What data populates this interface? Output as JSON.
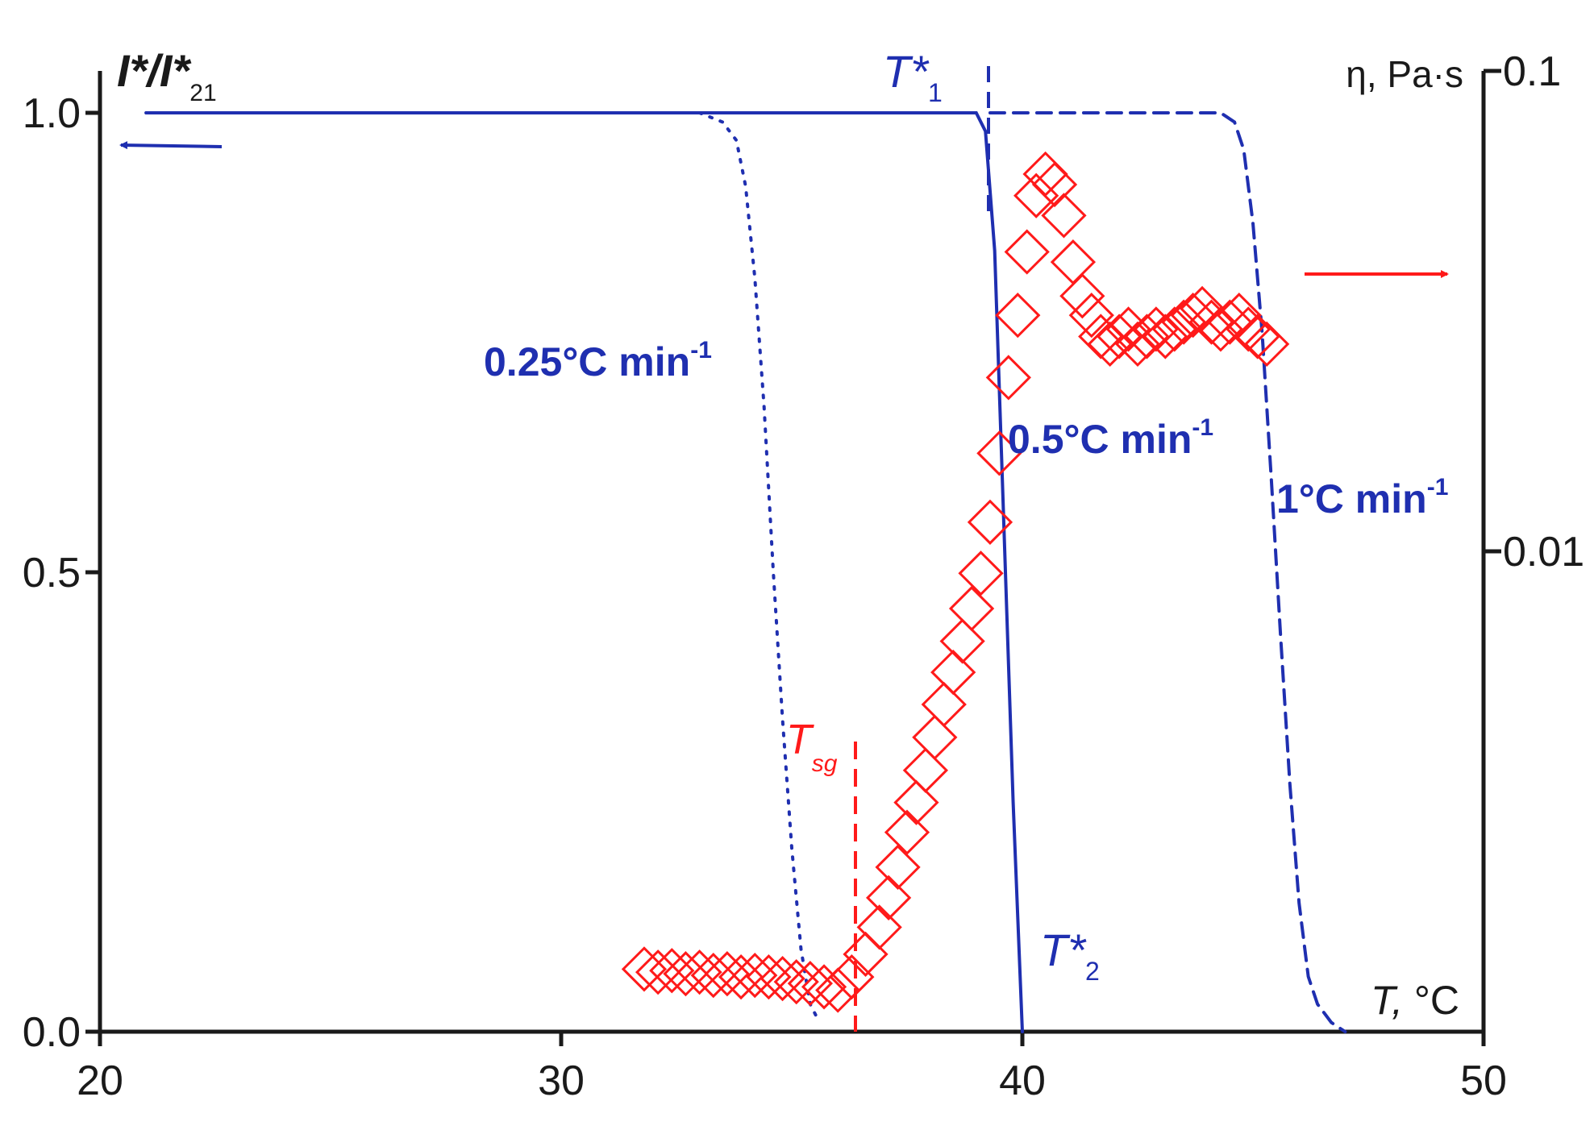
{
  "chart_data": {
    "type": "line",
    "x_axis": {
      "label_var": "T,",
      "label_unit": " °C",
      "range": [
        20,
        50
      ],
      "ticks": [
        20,
        30,
        40,
        50
      ],
      "tick_labels": [
        "20",
        "30",
        "40",
        "50"
      ]
    },
    "y_left": {
      "label_main": "I*/I*",
      "label_sub": "21",
      "range": [
        0,
        1.0
      ],
      "ticks": [
        0.0,
        0.5,
        1.0
      ],
      "tick_labels": [
        "0.0",
        "0.5",
        "1.0"
      ]
    },
    "y_right": {
      "label": "η, Pa·s",
      "scale": "log",
      "range": [
        0.001,
        0.1
      ],
      "ticks": [
        0.01,
        0.1
      ],
      "tick_labels": [
        "0.01",
        "0.1"
      ]
    },
    "series": [
      {
        "name": "0.25°C min-1",
        "axis": "left",
        "style": "dotted",
        "color": "#1f2fb0",
        "x": [
          21.0,
          33.0,
          33.5,
          33.8,
          34.0,
          34.2,
          34.4,
          34.6,
          34.8,
          35.0,
          35.2,
          35.4,
          35.6
        ],
        "y": [
          1.0,
          1.0,
          0.99,
          0.97,
          0.92,
          0.82,
          0.68,
          0.5,
          0.34,
          0.2,
          0.09,
          0.03,
          0.01
        ]
      },
      {
        "name": "0.5°C min-1",
        "axis": "left",
        "style": "solid",
        "color": "#1f2fb0",
        "x": [
          21.0,
          39.0,
          39.2,
          39.4,
          39.6,
          39.8,
          40.0
        ],
        "y": [
          1.0,
          1.0,
          0.98,
          0.85,
          0.55,
          0.25,
          0.0
        ]
      },
      {
        "name": "1°C min-1",
        "axis": "left",
        "style": "dashed",
        "color": "#1f2fb0",
        "x": [
          39.3,
          44.3,
          44.6,
          44.8,
          45.0,
          45.2,
          45.4,
          45.6,
          45.8,
          46.0,
          46.2,
          46.4,
          46.7,
          47.0
        ],
        "y": [
          1.0,
          1.0,
          0.99,
          0.96,
          0.88,
          0.76,
          0.6,
          0.43,
          0.27,
          0.14,
          0.06,
          0.03,
          0.01,
          0.0
        ]
      },
      {
        "name": "η",
        "axis": "right",
        "style": "markers",
        "marker": "diamond-open",
        "color": "#ff1a1a",
        "x": [
          31.8,
          32.1,
          32.4,
          32.7,
          33.0,
          33.3,
          33.6,
          33.9,
          34.2,
          34.5,
          34.8,
          35.1,
          35.4,
          35.7,
          36.0,
          36.3,
          36.6,
          36.9,
          37.1,
          37.3,
          37.5,
          37.7,
          37.9,
          38.1,
          38.3,
          38.5,
          38.7,
          38.9,
          39.1,
          39.3,
          39.5,
          39.7,
          39.9,
          40.1,
          40.3,
          40.5,
          40.7,
          40.9,
          41.1,
          41.3,
          41.5,
          41.7,
          41.9,
          42.1,
          42.3,
          42.5,
          42.7,
          42.9,
          43.1,
          43.3,
          43.5,
          43.7,
          43.9,
          44.1,
          44.3,
          44.5,
          44.7,
          44.9,
          45.1,
          45.3
        ],
        "y": [
          0.00135,
          0.00133,
          0.00134,
          0.00132,
          0.00133,
          0.00131,
          0.00132,
          0.0013,
          0.00131,
          0.0013,
          0.00129,
          0.00127,
          0.00126,
          0.00124,
          0.00122,
          0.0013,
          0.00145,
          0.00165,
          0.0019,
          0.0022,
          0.0026,
          0.003,
          0.0035,
          0.0041,
          0.0048,
          0.0056,
          0.0065,
          0.0076,
          0.009,
          0.0115,
          0.016,
          0.023,
          0.031,
          0.042,
          0.055,
          0.061,
          0.058,
          0.05,
          0.04,
          0.034,
          0.031,
          0.028,
          0.027,
          0.028,
          0.029,
          0.027,
          0.028,
          0.029,
          0.028,
          0.029,
          0.03,
          0.031,
          0.032,
          0.03,
          0.029,
          0.03,
          0.031,
          0.029,
          0.028,
          0.027
        ]
      }
    ],
    "annotations": {
      "t1": {
        "main": "T*",
        "sub": "1"
      },
      "t2": {
        "main": "T*",
        "sub": "2"
      },
      "tsg": {
        "main": "T",
        "sub": "sg"
      },
      "rate_025": {
        "text": "0.25°C min",
        "sup": "-1"
      },
      "rate_05": {
        "text": "0.5°C min",
        "sup": "-1"
      },
      "rate_1": {
        "text": "1°C min",
        "sup": "-1"
      }
    },
    "colors": {
      "blue": "#1f2fb0",
      "red": "#ff1a1a",
      "axis": "#1a1a1a"
    },
    "legend": "none",
    "grid": false
  }
}
